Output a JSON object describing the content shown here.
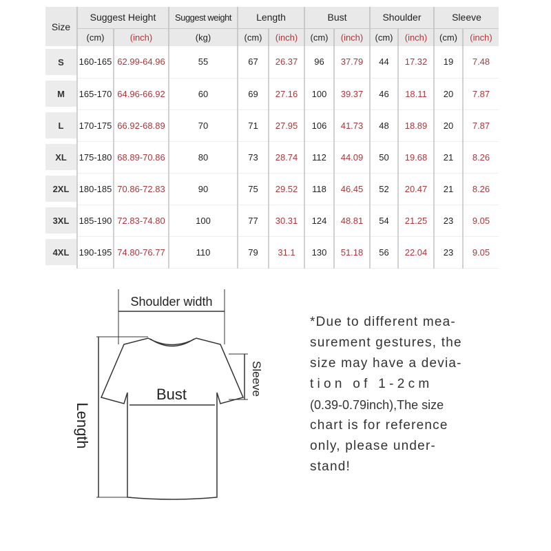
{
  "table": {
    "headers": {
      "size": "Size",
      "height": "Suggest Height",
      "weight": "Suggest weight",
      "length": "Length",
      "bust": "Bust",
      "shoulder": "Shoulder",
      "sleeve": "Sleeve"
    },
    "units": {
      "cm": "(cm)",
      "inch": "(inch)",
      "kg": "(kg)"
    },
    "rows": [
      [
        "S",
        "160-165",
        "62.99-64.96",
        "55",
        "67",
        "26.37",
        "96",
        "37.79",
        "44",
        "17.32",
        "19",
        "7.48"
      ],
      [
        "M",
        "165-170",
        "64.96-66.92",
        "60",
        "69",
        "27.16",
        "100",
        "39.37",
        "46",
        "18.11",
        "20",
        "7.87"
      ],
      [
        "L",
        "170-175",
        "66.92-68.89",
        "70",
        "71",
        "27.95",
        "106",
        "41.73",
        "48",
        "18.89",
        "20",
        "7.87"
      ],
      [
        "XL",
        "175-180",
        "68.89-70.86",
        "80",
        "73",
        "28.74",
        "112",
        "44.09",
        "50",
        "19.68",
        "21",
        "8.26"
      ],
      [
        "2XL",
        "180-185",
        "70.86-72.83",
        "90",
        "75",
        "29.52",
        "118",
        "46.45",
        "52",
        "20.47",
        "21",
        "8.26"
      ],
      [
        "3XL",
        "185-190",
        "72.83-74.80",
        "100",
        "77",
        "30.31",
        "124",
        "48.81",
        "54",
        "21.25",
        "23",
        "9.05"
      ],
      [
        "4XL",
        "190-195",
        "74.80-76.77",
        "110",
        "79",
        "31.1",
        "130",
        "51.18",
        "56",
        "22.04",
        "23",
        "9.05"
      ]
    ]
  },
  "diagram": {
    "shoulder": "Shoulder width",
    "bust": "Bust",
    "length": "Length",
    "sleeve": "Sleeve"
  },
  "note": [
    "*Due to different mea-",
    "surement gestures, the",
    "size may have a devia-",
    "t i o n   o f   1 - 2 c m",
    "(0.39-0.79inch),The size",
    "chart is for reference",
    "only, please under-",
    "stand!"
  ],
  "colors": {
    "inch_text": "#b0353a",
    "header_bg": "#e9e9e9"
  }
}
